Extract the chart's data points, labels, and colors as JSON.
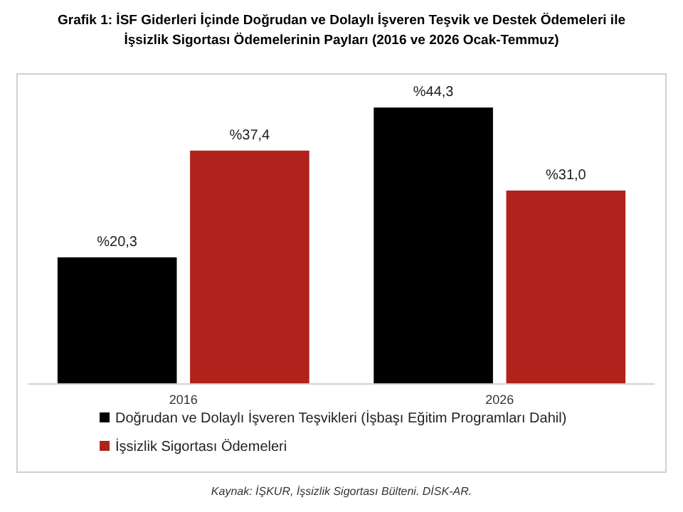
{
  "chart_data": {
    "type": "bar",
    "title": "Grafik 1: İSF Giderleri İçinde Doğrudan ve Dolaylı İşveren Teşvik ve Destek Ödemeleri ile\nİşsizlik Sigortası Ödemelerinin Payları (2016 ve 2026 Ocak-Temmuz)",
    "categories": [
      "2016",
      "2026"
    ],
    "series": [
      {
        "name": "Doğrudan ve Dolaylı İşveren Teşvikleri (İşbaşı Eğitim Programları Dahil)",
        "color": "#000000",
        "values": [
          20.3,
          44.3
        ],
        "value_labels": [
          "%20,3",
          "%44,3"
        ]
      },
      {
        "name": "İşsizlik Sigortası Ödemeleri",
        "color": "#b0231d",
        "values": [
          37.4,
          31.0
        ],
        "value_labels": [
          "%37,4",
          "%31,0"
        ]
      }
    ],
    "legend": "bottom",
    "annotations": [
      "Kaynak: İŞKUR, İşsizlik Sigortası Bülteni. DİSK-AR."
    ]
  }
}
